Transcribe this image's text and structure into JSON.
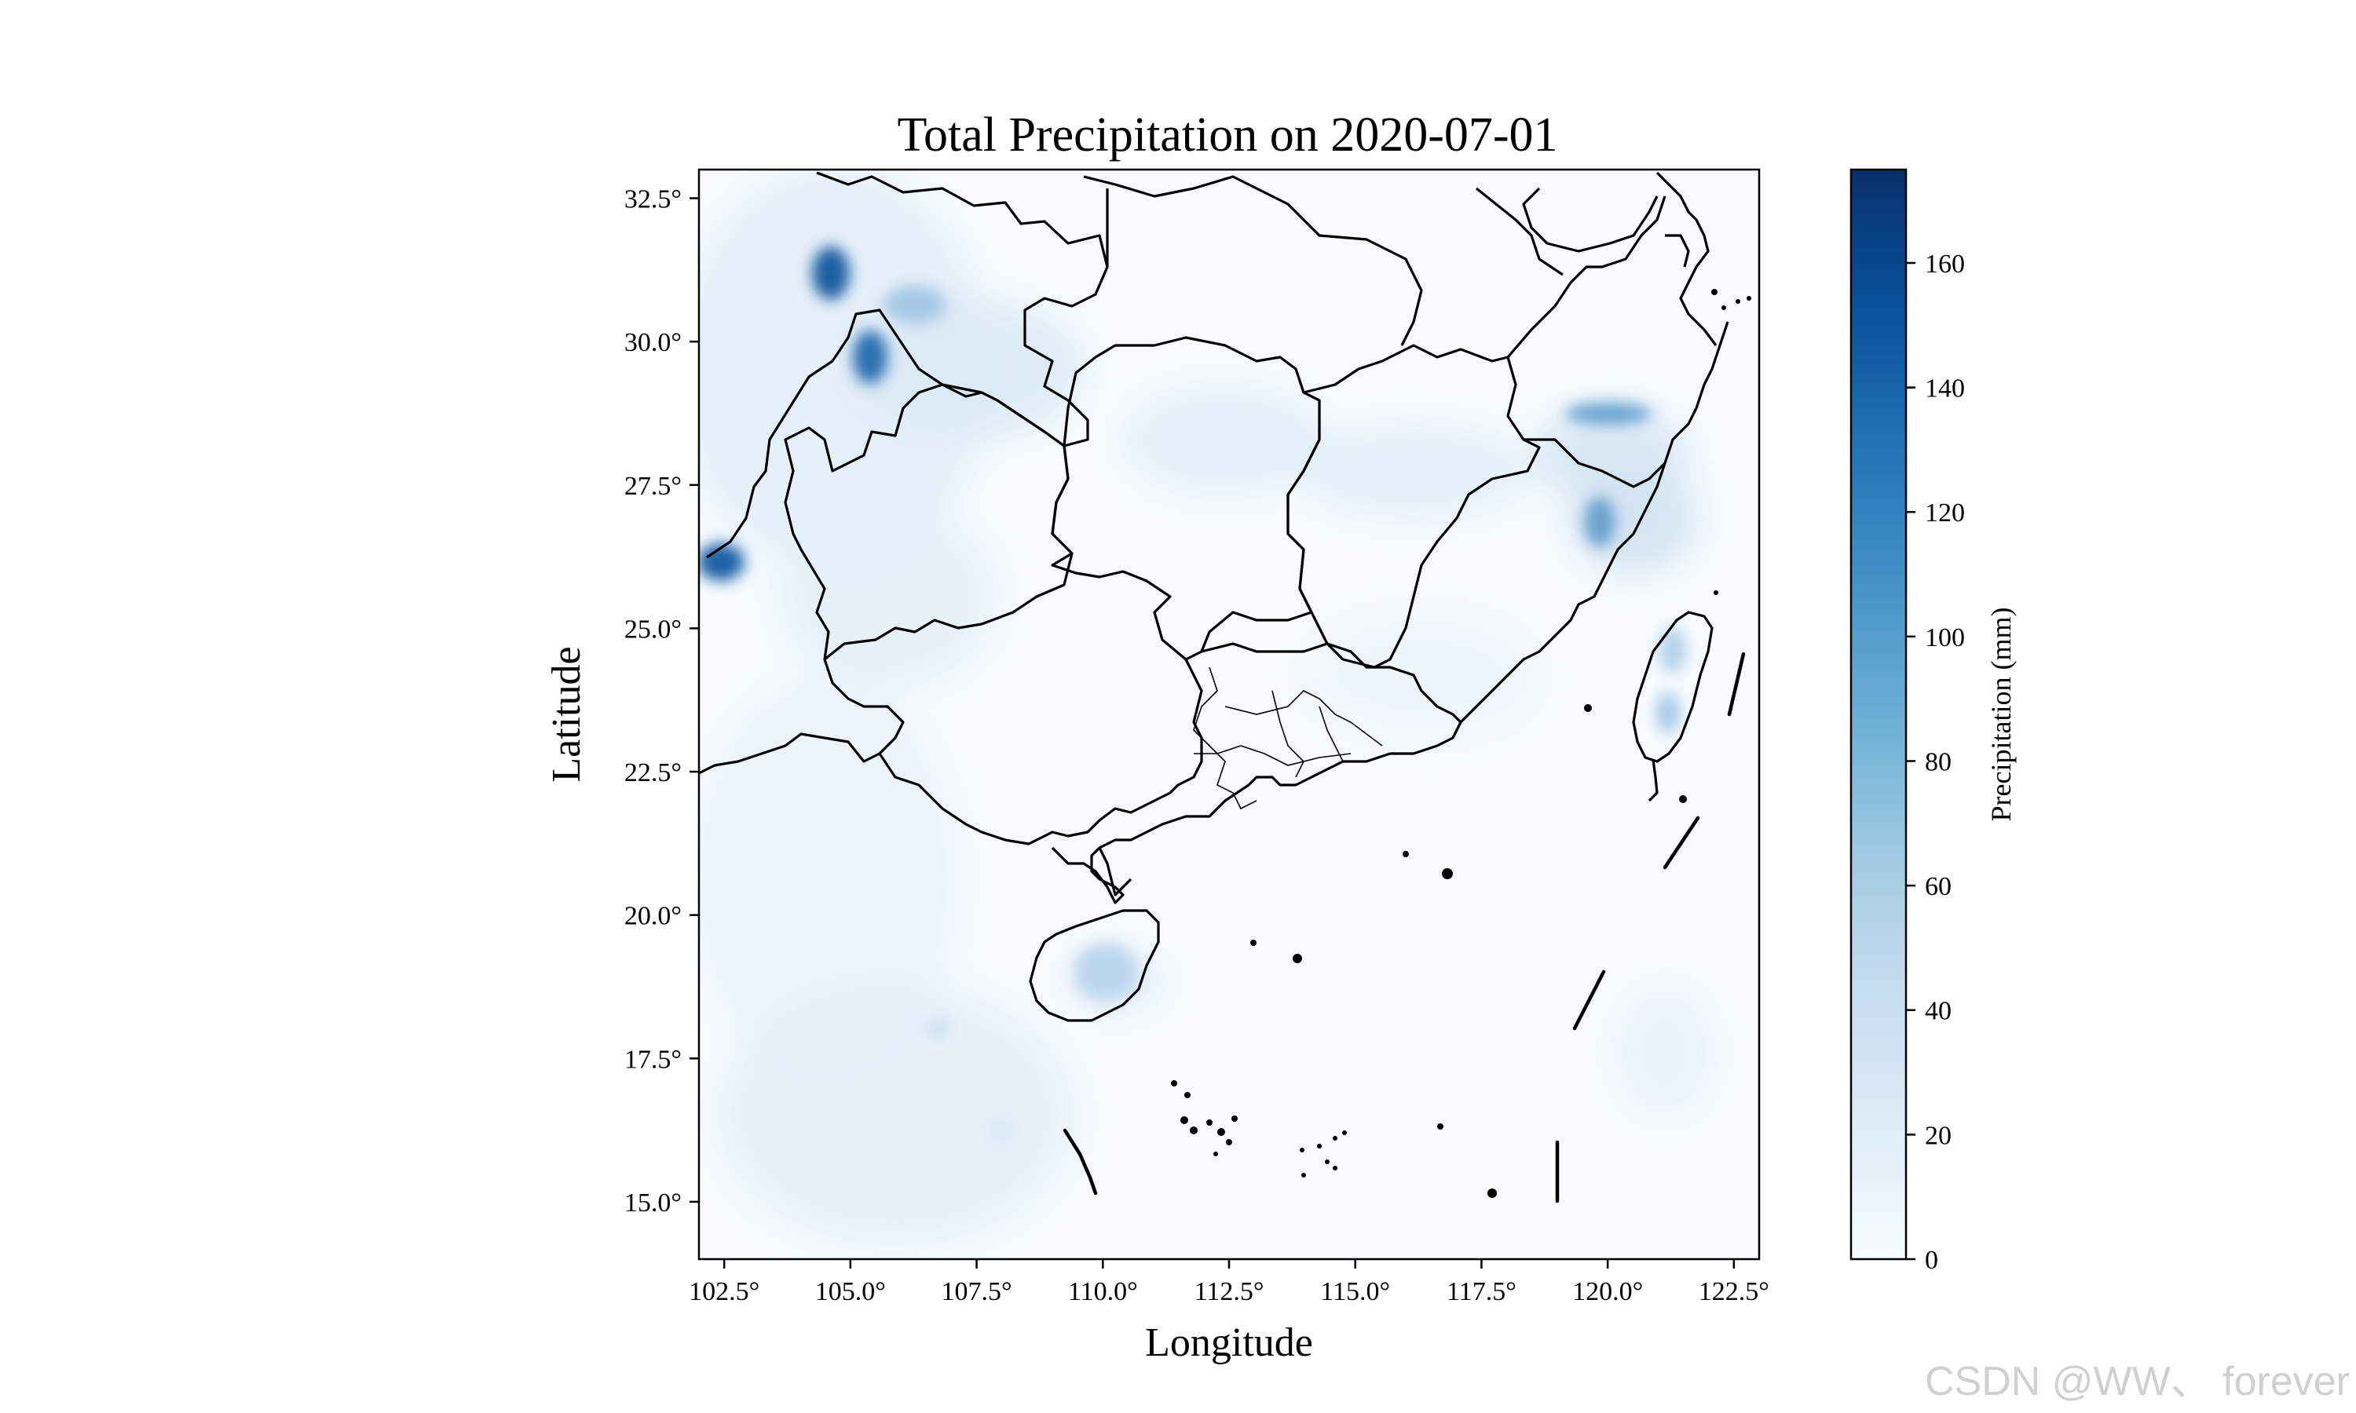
{
  "title": "Total Precipitation on 2020-07-01",
  "xlabel": "Longitude",
  "ylabel": "Latitude",
  "lon_ticks": [
    "102.5°",
    "105.0°",
    "107.5°",
    "110.0°",
    "112.5°",
    "115.0°",
    "117.5°",
    "120.0°",
    "122.5°"
  ],
  "lat_ticks": [
    "32.5°",
    "30.0°",
    "27.5°",
    "25.0°",
    "22.5°",
    "20.0°",
    "17.5°",
    "15.0°"
  ],
  "colorbar": {
    "label": "Precipitation (mm)",
    "ticks": [
      "0",
      "20",
      "40",
      "60",
      "80",
      "100",
      "120",
      "140",
      "160"
    ],
    "max": 175,
    "colormap": "Blues",
    "low_color": "#f7fbff",
    "high_color": "#08306b"
  },
  "watermark": "CSDN @WW、 forever",
  "chart_data": {
    "type": "heatmap",
    "title": "Total Precipitation on 2020-07-01",
    "xlabel": "Longitude",
    "ylabel": "Latitude",
    "xlim": [
      102,
      123
    ],
    "ylim": [
      14,
      33
    ],
    "value_range": [
      0,
      175
    ],
    "units": "mm",
    "hotspots": [
      {
        "lon": 104.7,
        "lat": 31.2,
        "value": 150
      },
      {
        "lon": 105.3,
        "lat": 29.8,
        "value": 130
      },
      {
        "lon": 102.5,
        "lat": 26.1,
        "value": 160
      },
      {
        "lon": 120.2,
        "lat": 28.8,
        "value": 80
      },
      {
        "lon": 119.5,
        "lat": 27.0,
        "value": 85
      },
      {
        "lon": 121.1,
        "lat": 23.6,
        "value": 45
      },
      {
        "lon": 110.3,
        "lat": 19.3,
        "value": 30
      }
    ]
  }
}
